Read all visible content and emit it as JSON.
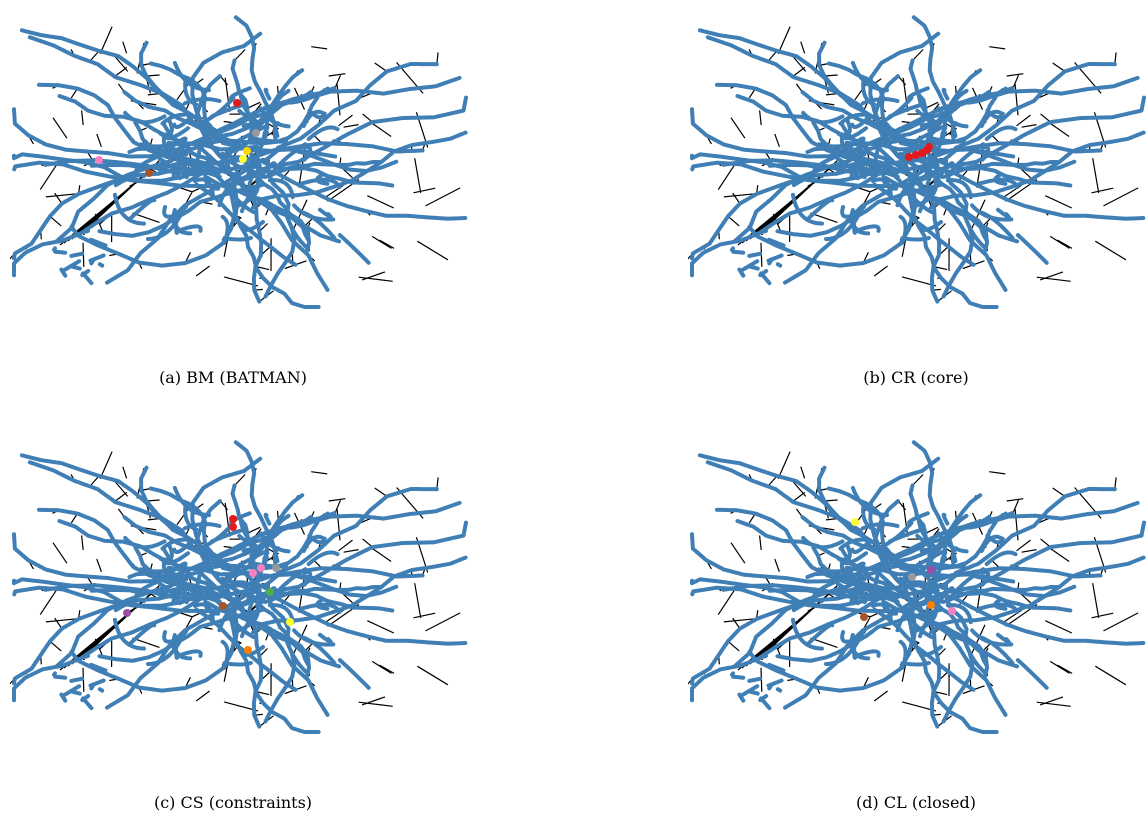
{
  "figure": {
    "panels": [
      {
        "id": "a",
        "caption": "(a) BM (BATMAN)",
        "highlight": [
          {
            "color": "#e31a1c"
          },
          {
            "color": "#999999"
          },
          {
            "color": "#ffd700"
          },
          {
            "color": "#ffff33"
          },
          {
            "color": "#f781bf"
          },
          {
            "color": "#a65628"
          }
        ]
      },
      {
        "id": "b",
        "caption": "(b) CR (core)",
        "highlight": [
          {
            "color": "#e31a1c"
          },
          {
            "color": "#e31a1c"
          },
          {
            "color": "#e31a1c"
          },
          {
            "color": "#e31a1c"
          },
          {
            "color": "#e31a1c"
          }
        ]
      },
      {
        "id": "c",
        "caption": "(c) CS (constraints)",
        "highlight": [
          {
            "color": "#e31a1c"
          },
          {
            "color": "#e31a1c"
          },
          {
            "color": "#f781bf"
          },
          {
            "color": "#f781bf"
          },
          {
            "color": "#999999"
          },
          {
            "color": "#4daf4a"
          },
          {
            "color": "#a65628"
          },
          {
            "color": "#984ea3"
          },
          {
            "color": "#ffff33"
          },
          {
            "color": "#ff7f00"
          }
        ]
      },
      {
        "id": "d",
        "caption": "(d) CL (closed)",
        "highlight": [
          {
            "color": "#ffff33"
          },
          {
            "color": "#999999"
          },
          {
            "color": "#984ea3"
          },
          {
            "color": "#ff7f00"
          },
          {
            "color": "#f781bf"
          },
          {
            "color": "#a65628"
          }
        ]
      }
    ],
    "colors": {
      "network": "#3f7fb5",
      "link": "#000000"
    }
  }
}
